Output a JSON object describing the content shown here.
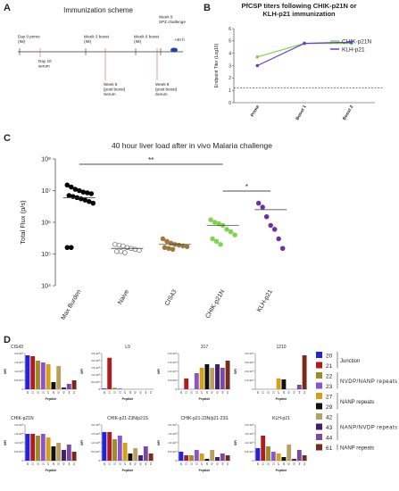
{
  "panel_letters": [
    "A",
    "B",
    "C",
    "D"
  ],
  "diagram": {
    "title": "Immunization scheme",
    "events": [
      {
        "lines": [
          "Day 0 prime",
          "(IM)"
        ]
      },
      {
        "lines": [
          "Day 10",
          "serum"
        ]
      },
      {
        "lines": [
          "Week 3 boost",
          "(IM)"
        ]
      },
      {
        "lines": [
          "Week 5",
          "(post boost)",
          "Serum"
        ]
      },
      {
        "lines": [
          "Week 6 boost",
          "(IM)"
        ]
      },
      {
        "lines": [
          "Week 8",
          "(post boost)",
          "Serum"
        ]
      },
      {
        "lines": [
          "Week 9",
          "SPZ challenge"
        ]
      },
      {
        "lines": [
          "+40 h"
        ]
      }
    ]
  },
  "chart_data": [
    {
      "type": "line",
      "title": [
        "PfCSP titers following CHIK-p21N or",
        "KLH-p21 immunization"
      ],
      "y_label": "Endpoint Titer (Log10)",
      "categories": [
        "Prime",
        "Boost 1",
        "Boost 2"
      ],
      "ylim": [
        0,
        6
      ],
      "yticks": [
        0,
        1,
        2,
        3,
        4,
        5,
        6
      ],
      "cutoff_line": 1.2,
      "series": [
        {
          "name": "CHIK-p21N",
          "color": "#7fd34e",
          "values": [
            3.7,
            4.8,
            4.8
          ]
        },
        {
          "name": "KLH-p21",
          "color": "#6a3bd1",
          "values": [
            3.0,
            4.8,
            4.9
          ]
        }
      ]
    },
    {
      "type": "scatter",
      "title": "40 hour liver load after in vivo Malaria challenge",
      "y_label": "Total Flux (p/s)",
      "log_scale": true,
      "ylim": [
        10000,
        100000000
      ],
      "yticks": [
        {
          "value": 10000,
          "label": "10⁴"
        },
        {
          "value": 100000,
          "label": "10⁵"
        },
        {
          "value": 1000000,
          "label": "10⁶"
        },
        {
          "value": 10000000,
          "label": "10⁷"
        },
        {
          "value": 100000000,
          "label": "10⁸"
        }
      ],
      "groups": [
        {
          "name": "Max Burden",
          "color": "#000000",
          "filled": true,
          "mean": 6000000,
          "values": [
            15000000,
            13000000,
            11000000,
            10000000,
            9000000,
            8500000,
            8000000,
            7000000,
            6500000,
            6000000,
            5500000,
            5000000,
            4500000,
            4000000,
            160000,
            160000
          ]
        },
        {
          "name": "Naive",
          "color": "#666666",
          "filled": false,
          "mean": 150000,
          "values": [
            200000,
            190000,
            180000,
            160000,
            150000,
            140000,
            130000,
            120000,
            120000,
            110000
          ]
        },
        {
          "name": "CIS43",
          "color": "#a0783c",
          "filled": true,
          "mean": 200000,
          "values": [
            300000,
            250000,
            220000,
            200000,
            190000,
            180000,
            170000,
            160000,
            150000,
            140000
          ]
        },
        {
          "name": "CHIK-p21N",
          "color": "#7fd34e",
          "filled": true,
          "mean": 800000,
          "values": [
            1200000,
            1000000,
            900000,
            800000,
            600000,
            500000,
            400000,
            300000,
            250000,
            200000
          ]
        },
        {
          "name": "KLH-p21",
          "color": "#7030a0",
          "filled": true,
          "mean": 2500000,
          "values": [
            4000000,
            3000000,
            1500000,
            800000,
            600000,
            300000,
            150000
          ]
        }
      ],
      "annotations": [
        {
          "text": "**",
          "between": [
            0,
            3
          ]
        },
        {
          "text": "*",
          "between": [
            3,
            4
          ]
        }
      ]
    },
    {
      "type": "bar",
      "title": "CIS43",
      "y_label": "MFI",
      "x_label": "Peptide",
      "categories": [
        "20",
        "21",
        "22",
        "23",
        "27",
        "29",
        "42",
        "43",
        "44",
        "61"
      ],
      "ylim": [
        0,
        200000
      ],
      "yticks": [
        0,
        {
          "value": 50000,
          "label": "5.0×10⁴"
        },
        {
          "value": 100000,
          "label": "1.0×10⁵"
        },
        {
          "value": 150000,
          "label": "1.5×10⁵"
        },
        {
          "value": 200000,
          "label": "2.0×10⁵"
        }
      ],
      "values": [
        190000,
        185000,
        160000,
        150000,
        140000,
        40000,
        130000,
        10000,
        30000,
        50000
      ]
    },
    {
      "type": "bar",
      "title": "L9",
      "y_label": "MFI",
      "x_label": "Peptide",
      "categories": [
        "20",
        "21",
        "22",
        "23",
        "27",
        "29",
        "42",
        "43",
        "44",
        "61"
      ],
      "ylim": [
        0,
        250000
      ],
      "yticks": [
        0,
        {
          "value": 50000,
          "label": "5.0×10⁴"
        },
        {
          "value": 100000,
          "label": "1.0×10⁵"
        },
        {
          "value": 150000,
          "label": "1.5×10⁵"
        },
        {
          "value": 200000,
          "label": "2.0×10⁵"
        },
        {
          "value": 250000,
          "label": "2.5×10⁵"
        }
      ],
      "values": [
        5000,
        220000,
        10000,
        5000,
        0,
        0,
        0,
        0,
        0,
        0
      ]
    },
    {
      "type": "bar",
      "title": "317",
      "y_label": "MFI",
      "x_label": "Peptide",
      "categories": [
        "20",
        "21",
        "22",
        "23",
        "27",
        "29",
        "42",
        "43",
        "44",
        "61"
      ],
      "ylim": [
        0,
        20000
      ],
      "yticks": [
        0,
        {
          "value": 5000,
          "label": "5.0×10³"
        },
        {
          "value": 10000,
          "label": "1.0×10⁴"
        },
        {
          "value": 15000,
          "label": "1.5×10⁴"
        },
        {
          "value": 20000,
          "label": "2.0×10⁴"
        }
      ],
      "values": [
        0,
        6000,
        0,
        9000,
        12000,
        14000,
        12000,
        14000,
        12000,
        16000
      ]
    },
    {
      "type": "bar",
      "title": "1210",
      "y_label": "MFI",
      "x_label": "Peptide",
      "categories": [
        "20",
        "21",
        "22",
        "23",
        "27",
        "29",
        "42",
        "43",
        "44",
        "61"
      ],
      "ylim": [
        0,
        40000
      ],
      "yticks": [
        0,
        {
          "value": 10000,
          "label": "1.0×10⁴"
        },
        {
          "value": 20000,
          "label": "2.0×10⁴"
        },
        {
          "value": 30000,
          "label": "3.0×10⁴"
        },
        {
          "value": 40000,
          "label": "4.0×10⁴"
        }
      ],
      "values": [
        0,
        0,
        0,
        0,
        12000,
        11000,
        0,
        0,
        5000,
        38000
      ]
    },
    {
      "type": "bar",
      "title": "CHIK-p21N",
      "y_label": "MFI",
      "x_label": "Peptide",
      "categories": [
        "20",
        "21",
        "22",
        "23",
        "27",
        "29",
        "42",
        "43",
        "44",
        "61"
      ],
      "ylim": [
        0,
        200000
      ],
      "yticks": [
        0,
        {
          "value": 50000,
          "label": "5.0×10⁴"
        },
        {
          "value": 100000,
          "label": "1.0×10⁵"
        },
        {
          "value": 150000,
          "label": "1.5×10⁵"
        },
        {
          "value": 200000,
          "label": "2.0×10⁵"
        }
      ],
      "values": [
        150000,
        150000,
        140000,
        150000,
        130000,
        80000,
        100000,
        60000,
        90000,
        50000
      ]
    },
    {
      "type": "bar",
      "title": "CHIK-p21-23N/p21S",
      "y_label": "MFI",
      "x_label": "Peptide",
      "categories": [
        "20",
        "21",
        "22",
        "23",
        "27",
        "29",
        "42",
        "43",
        "44",
        "61"
      ],
      "ylim": [
        0,
        200000
      ],
      "yticks": [
        0,
        {
          "value": 50000,
          "label": "5.0×10⁴"
        },
        {
          "value": 100000,
          "label": "1.0×10⁵"
        },
        {
          "value": 150000,
          "label": "1.5×10⁵"
        },
        {
          "value": 200000,
          "label": "2.0×10⁵"
        }
      ],
      "values": [
        160000,
        160000,
        120000,
        140000,
        100000,
        40000,
        70000,
        30000,
        80000,
        40000
      ]
    },
    {
      "type": "bar",
      "title": "CHIK-p21-23N/p21-23S",
      "y_label": "MFI",
      "x_label": "Peptide",
      "categories": [
        "20",
        "21",
        "22",
        "23",
        "27",
        "29",
        "42",
        "43",
        "44",
        "61"
      ],
      "ylim": [
        0,
        200000
      ],
      "yticks": [
        0,
        {
          "value": 50000,
          "label": "5.0×10⁴"
        },
        {
          "value": 100000,
          "label": "1.0×10⁵"
        },
        {
          "value": 150000,
          "label": "1.5×10⁵"
        },
        {
          "value": 200000,
          "label": "2.0×10⁵"
        }
      ],
      "values": [
        50000,
        30000,
        30000,
        60000,
        40000,
        10000,
        60000,
        20000,
        40000,
        30000
      ]
    },
    {
      "type": "bar",
      "title": "KLH-p21",
      "y_label": "MFI",
      "x_label": "Peptide",
      "categories": [
        "20",
        "21",
        "22",
        "23",
        "27",
        "29",
        "42",
        "43",
        "44",
        "61"
      ],
      "ylim": [
        0,
        200000
      ],
      "yticks": [
        0,
        {
          "value": 50000,
          "label": "5.0×10⁴"
        },
        {
          "value": 100000,
          "label": "1.0×10⁵"
        },
        {
          "value": 150000,
          "label": "1.5×10⁵"
        },
        {
          "value": 200000,
          "label": "2.0×10⁵"
        }
      ],
      "values": [
        70000,
        140000,
        80000,
        50000,
        40000,
        20000,
        90000,
        10000,
        60000,
        30000
      ]
    }
  ],
  "peptide_legend": {
    "items": [
      {
        "label": "20",
        "color": "#2222dd"
      },
      {
        "label": "21",
        "color": "#b01c1c"
      },
      {
        "label": "22",
        "color": "#a08a2a"
      },
      {
        "label": "23",
        "color": "#8855cc"
      },
      {
        "label": "27",
        "color": "#d4a017"
      },
      {
        "label": "29",
        "color": "#111111"
      },
      {
        "label": "42",
        "color": "#b8a060"
      },
      {
        "label": "43",
        "color": "#3d1f6e"
      },
      {
        "label": "44",
        "color": "#7a4aa0"
      },
      {
        "label": "61",
        "color": "#7a2a1a"
      }
    ],
    "groups": [
      {
        "label": "Junction",
        "items": [
          0,
          1
        ]
      },
      {
        "label": "NVDP/NANP repeats",
        "items": [
          2,
          3
        ]
      },
      {
        "label": "NANP repeats",
        "items": [
          4,
          5
        ]
      },
      {
        "label": "NANP/NVDP repeats",
        "items": [
          6,
          8
        ]
      },
      {
        "label": "NANP repeats",
        "items": [
          9,
          9
        ]
      }
    ]
  }
}
